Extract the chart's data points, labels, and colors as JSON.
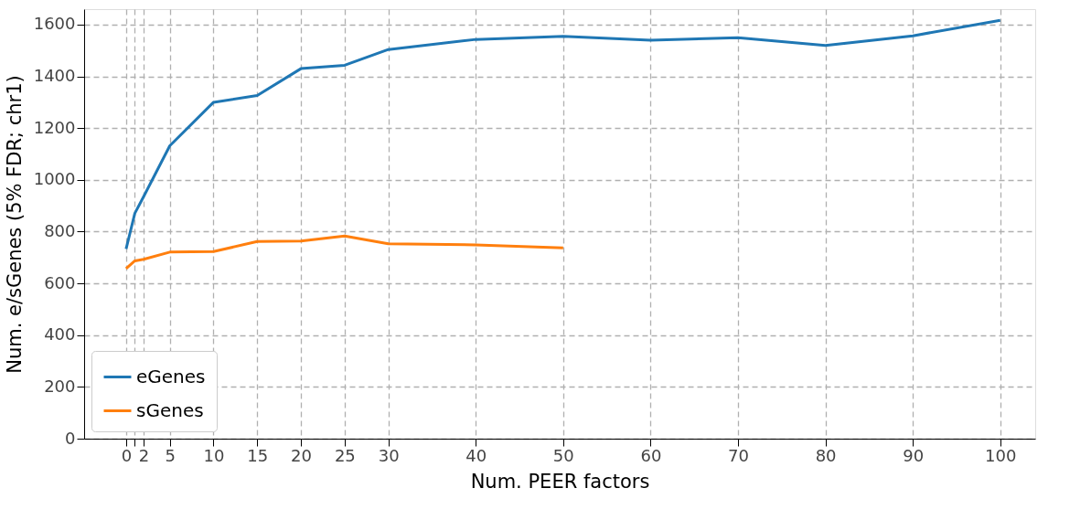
{
  "chart_data": {
    "type": "line",
    "xlabel": "Num. PEER factors",
    "ylabel": "Num. e/sGenes (5% FDR; chr1)",
    "x": [
      0,
      1,
      2,
      5,
      10,
      15,
      20,
      25,
      30,
      40,
      50,
      60,
      70,
      80,
      90,
      100
    ],
    "series": [
      {
        "name": "eGenes",
        "color": "#1f77b4",
        "values": [
          733,
          871,
          935,
          1132,
          1300,
          1326,
          1430,
          1443,
          1504,
          1543,
          1555,
          1540,
          1550,
          1520,
          1557,
          1617
        ]
      },
      {
        "name": "sGenes",
        "color": "#ff7f0e",
        "values": [
          657,
          687,
          693,
          721,
          723,
          762,
          764,
          783,
          753,
          749,
          737,
          null,
          null,
          null,
          null,
          null
        ]
      }
    ],
    "xlim": [
      -4.8,
      104
    ],
    "ylim": [
      0,
      1660
    ],
    "xticks": [
      0,
      {
        "value": 1,
        "label": null
      },
      2,
      5,
      10,
      15,
      20,
      25,
      30,
      40,
      50,
      60,
      70,
      80,
      90,
      100
    ],
    "yticks": [
      0,
      200,
      400,
      600,
      800,
      1000,
      1200,
      1400,
      1600
    ],
    "grid": true,
    "legend": "bottom left",
    "line_style": "solid",
    "marker": "none"
  }
}
